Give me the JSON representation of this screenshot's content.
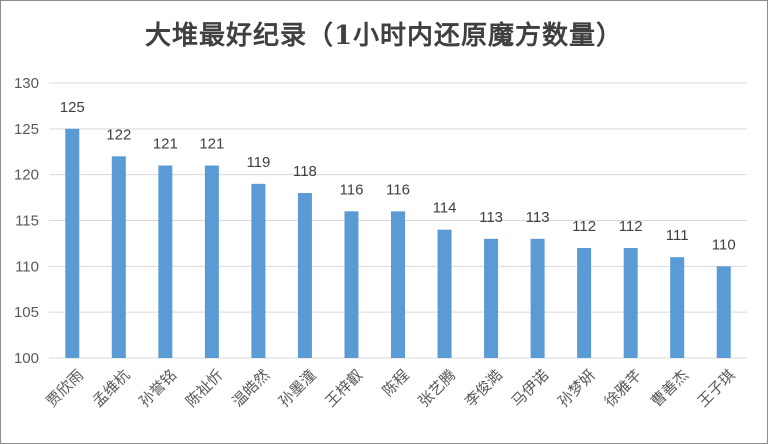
{
  "chart_data": {
    "type": "bar",
    "title": "大堆最好纪录（1小时内还原魔方数量）",
    "categories": [
      "贾欣雨",
      "孟维杭",
      "孙誉铭",
      "陈祉忻",
      "温皓然",
      "孙墨潼",
      "王梓叡",
      "陈程",
      "张艺腾",
      "李俊澔",
      "马伊诺",
      "孙梦妍",
      "徐雅芊",
      "曹善杰",
      "王子琪"
    ],
    "values": [
      125,
      122,
      121,
      121,
      119,
      118,
      116,
      116,
      114,
      113,
      113,
      112,
      112,
      111,
      110
    ],
    "ylim": [
      100,
      130
    ],
    "yticks": [
      100,
      105,
      110,
      115,
      120,
      125,
      130
    ],
    "xlabel": "",
    "ylabel": "",
    "grid": true,
    "legend": "none",
    "colors": {
      "bar": "#5b9bd5",
      "grid": "#d9d9d9",
      "text": "#595959"
    }
  }
}
